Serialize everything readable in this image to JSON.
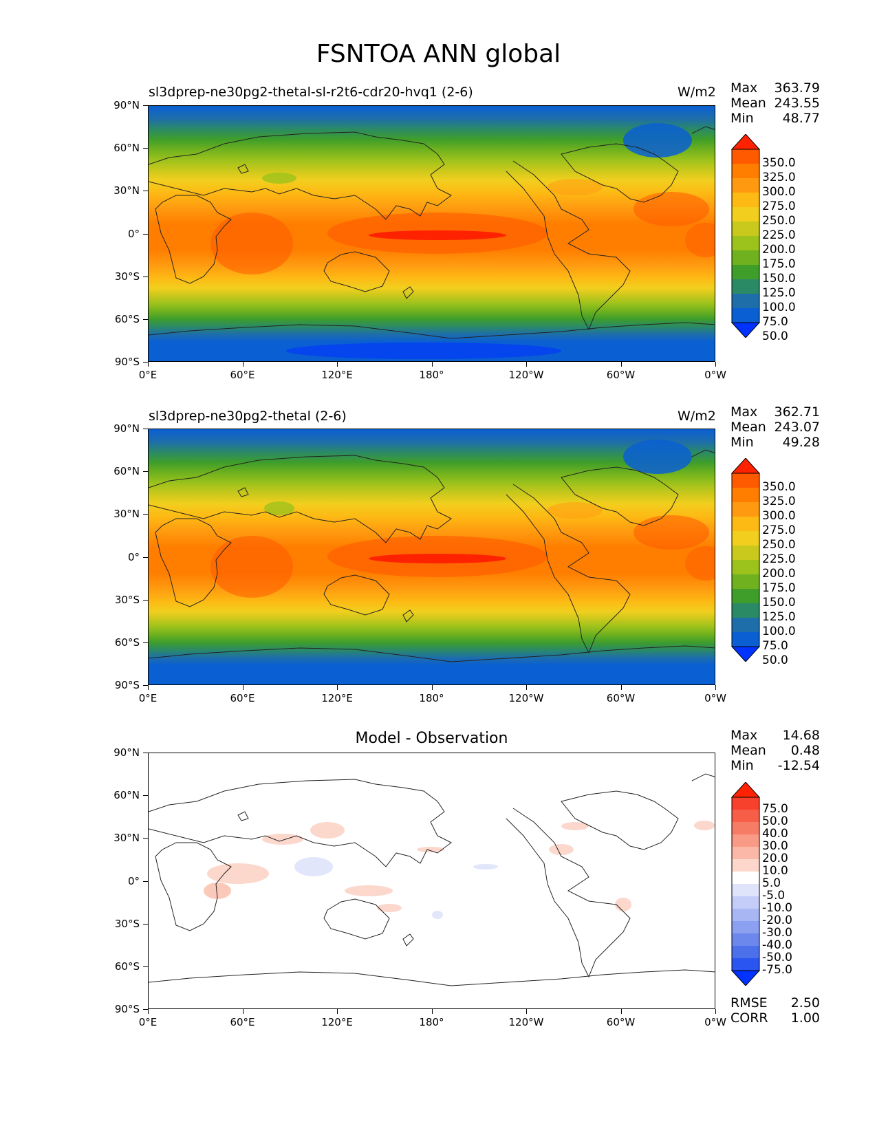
{
  "figure_title": "FSNTOA ANN global",
  "lat_ticks": [
    "90°N",
    "60°N",
    "30°N",
    "0°",
    "30°S",
    "60°S",
    "90°S"
  ],
  "lon_ticks": [
    "0°E",
    "60°E",
    "120°E",
    "180°",
    "120°W",
    "60°W",
    "0°W"
  ],
  "panels": [
    {
      "title": "sl3dprep-ne30pg2-thetal-sl-r2t6-cdr20-hvq1 (2-6)",
      "units": "W/m2",
      "stats": {
        "max_label": "Max",
        "max": "363.79",
        "mean_label": "Mean",
        "mean": "243.55",
        "min_label": "Min",
        "min": "48.77"
      },
      "colorbar": {
        "labels": [
          "350.0",
          "325.0",
          "300.0",
          "275.0",
          "250.0",
          "225.0",
          "200.0",
          "175.0",
          "150.0",
          "125.0",
          "100.0",
          "75.0",
          "50.0"
        ],
        "colors": [
          "#ff2200",
          "#ff5a00",
          "#ff7e00",
          "#ff9a10",
          "#fdb914",
          "#f2cf1e",
          "#c9c81c",
          "#9cc21c",
          "#6fb11e",
          "#3f9e2a",
          "#2b8a66",
          "#1e6eaa",
          "#0a5fd2",
          "#0033ff"
        ]
      }
    },
    {
      "title": "sl3dprep-ne30pg2-thetal (2-6)",
      "units": "W/m2",
      "stats": {
        "max_label": "Max",
        "max": "362.71",
        "mean_label": "Mean",
        "mean": "243.07",
        "min_label": "Min",
        "min": "49.28"
      },
      "colorbar": {
        "labels": [
          "350.0",
          "325.0",
          "300.0",
          "275.0",
          "250.0",
          "225.0",
          "200.0",
          "175.0",
          "150.0",
          "125.0",
          "100.0",
          "75.0",
          "50.0"
        ],
        "colors": [
          "#ff2200",
          "#ff5a00",
          "#ff7e00",
          "#ff9a10",
          "#fdb914",
          "#f2cf1e",
          "#c9c81c",
          "#9cc21c",
          "#6fb11e",
          "#3f9e2a",
          "#2b8a66",
          "#1e6eaa",
          "#0a5fd2",
          "#0033ff"
        ]
      }
    },
    {
      "title": "Model - Observation",
      "units": "",
      "stats": {
        "max_label": "Max",
        "max": "14.68",
        "mean_label": "Mean",
        "mean": "0.48",
        "min_label": "Min",
        "min": "-12.54"
      },
      "colorbar": {
        "labels": [
          "75.0",
          "50.0",
          "40.0",
          "30.0",
          "20.0",
          "10.0",
          "5.0",
          "-5.0",
          "-10.0",
          "-20.0",
          "-30.0",
          "-40.0",
          "-50.0",
          "-75.0"
        ],
        "colors": [
          "#ff2200",
          "#f8412c",
          "#f65e48",
          "#f77c66",
          "#f99a86",
          "#fbb8a8",
          "#fdd6cc",
          "#ffffff",
          "#dfe4fb",
          "#c4cdf8",
          "#a8b6f4",
          "#8ba0f0",
          "#6c88ec",
          "#4c6fea",
          "#2a55f0",
          "#0033ff"
        ]
      },
      "rmse_label": "RMSE",
      "rmse": "2.50",
      "corr_label": "CORR",
      "corr": "1.00"
    }
  ]
}
